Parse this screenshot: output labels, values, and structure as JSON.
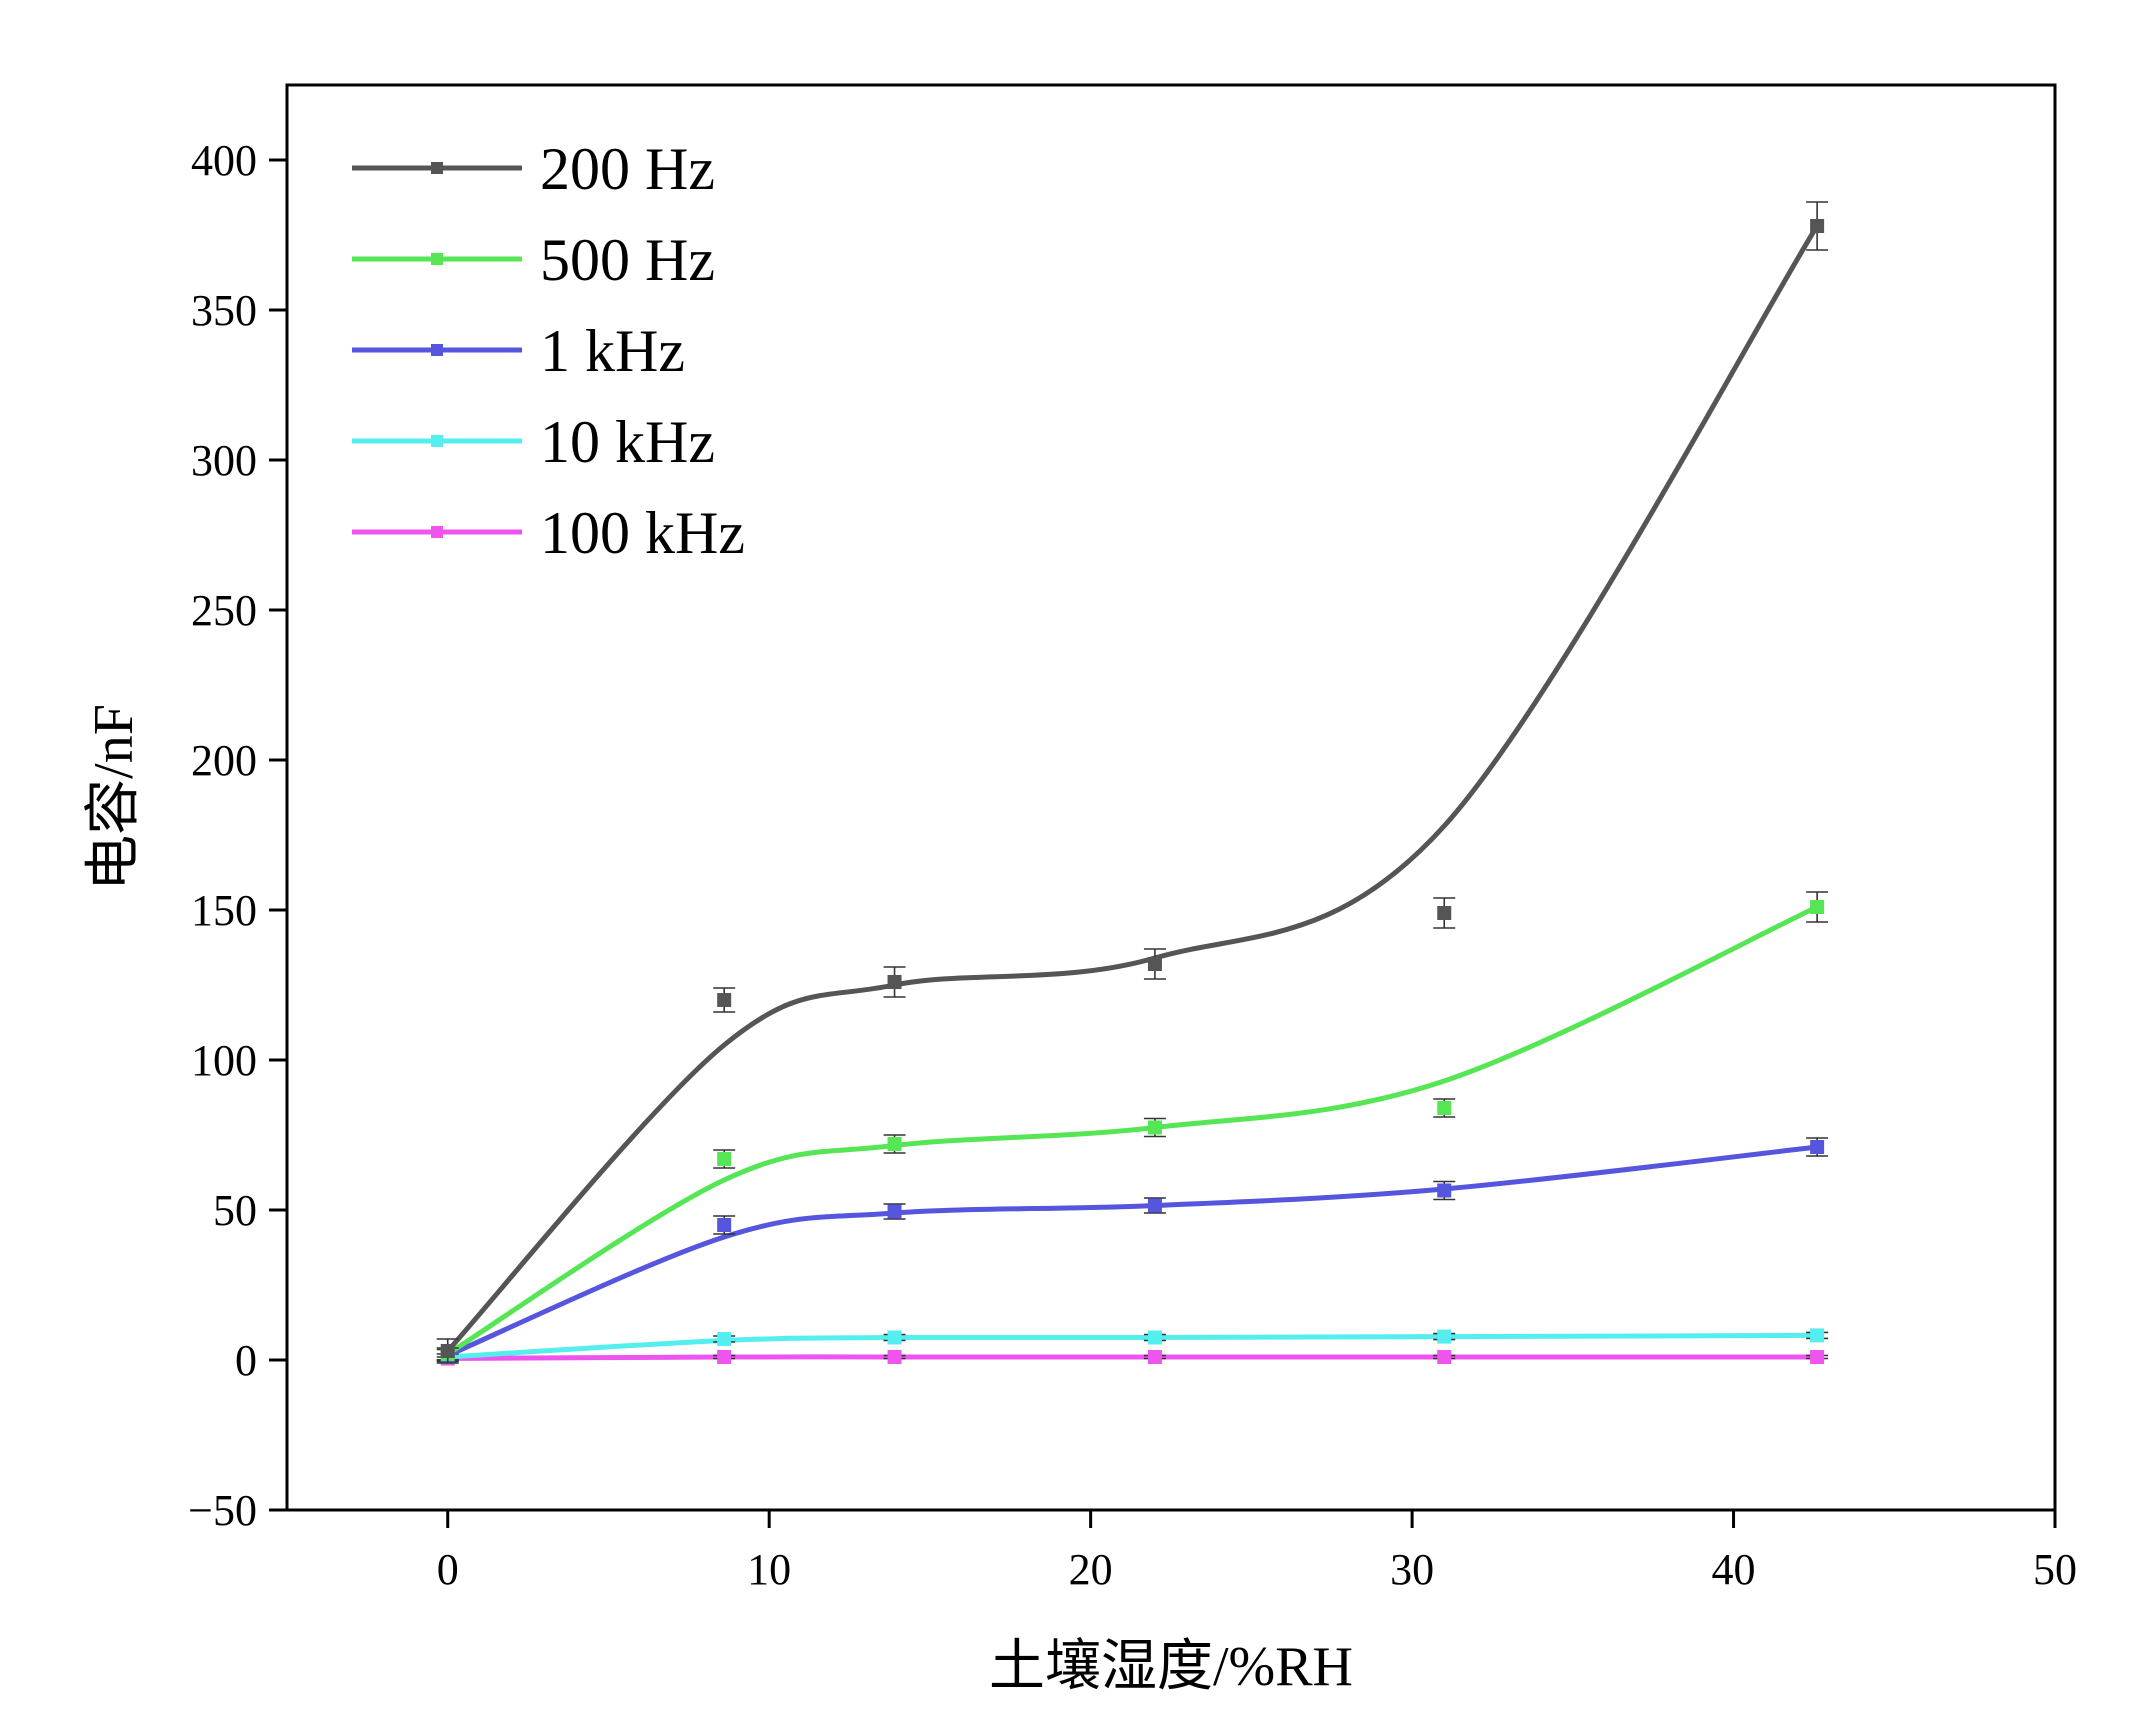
{
  "chart_data": {
    "type": "line",
    "title": "",
    "xlabel": "土壤湿度/%RH",
    "ylabel": "电容/nF",
    "xlim": [
      -5,
      50
    ],
    "ylim": [
      -50,
      425
    ],
    "xticks": [
      0,
      10,
      20,
      30,
      40,
      50
    ],
    "yticks": [
      -50,
      0,
      50,
      100,
      150,
      200,
      250,
      300,
      350,
      400
    ],
    "xtick_labels": [
      "0",
      "10",
      "20",
      "30",
      "40",
      "50"
    ],
    "ytick_labels": [
      "−50",
      "0",
      "50",
      "100",
      "150",
      "200",
      "250",
      "300",
      "350",
      "400"
    ],
    "grid": false,
    "legend_position": "top-left",
    "x": [
      0,
      8.6,
      13.9,
      22.0,
      31.0,
      42.6
    ],
    "series": [
      {
        "name": "200 Hz",
        "color": "#555555",
        "values": [
          3,
          120,
          126,
          132,
          149,
          378
        ],
        "errors": [
          4,
          4,
          5,
          5,
          5,
          8
        ],
        "fit": [
          3,
          105,
          125,
          134,
          178,
          378
        ]
      },
      {
        "name": "500 Hz",
        "color": "#55e555",
        "values": [
          2,
          67,
          72,
          77.5,
          84,
          151
        ],
        "errors": [
          2,
          3,
          3,
          3,
          3,
          5
        ],
        "fit": [
          2,
          60,
          71.5,
          77.5,
          93,
          151
        ]
      },
      {
        "name": "1 kHz",
        "color": "#5555dd",
        "values": [
          1.5,
          45,
          49.5,
          51.5,
          56.5,
          71
        ],
        "errors": [
          2,
          3,
          2.5,
          2.5,
          3,
          3
        ],
        "fit": [
          1.5,
          41,
          49,
          51.5,
          57,
          71
        ]
      },
      {
        "name": "10 kHz",
        "color": "#55eeee",
        "values": [
          1,
          7,
          7.5,
          7.5,
          7.8,
          8.2
        ],
        "errors": [
          1,
          1,
          1,
          1,
          1,
          1
        ],
        "fit": [
          1,
          6.5,
          7.5,
          7.5,
          7.8,
          8.2
        ]
      },
      {
        "name": "100 kHz",
        "color": "#ee55ee",
        "values": [
          0.5,
          1,
          1,
          1,
          1,
          1
        ],
        "errors": [
          0.5,
          0.5,
          0.5,
          0.5,
          0.5,
          0.5
        ],
        "fit": [
          0.5,
          1,
          1,
          1,
          1,
          1
        ]
      }
    ]
  }
}
